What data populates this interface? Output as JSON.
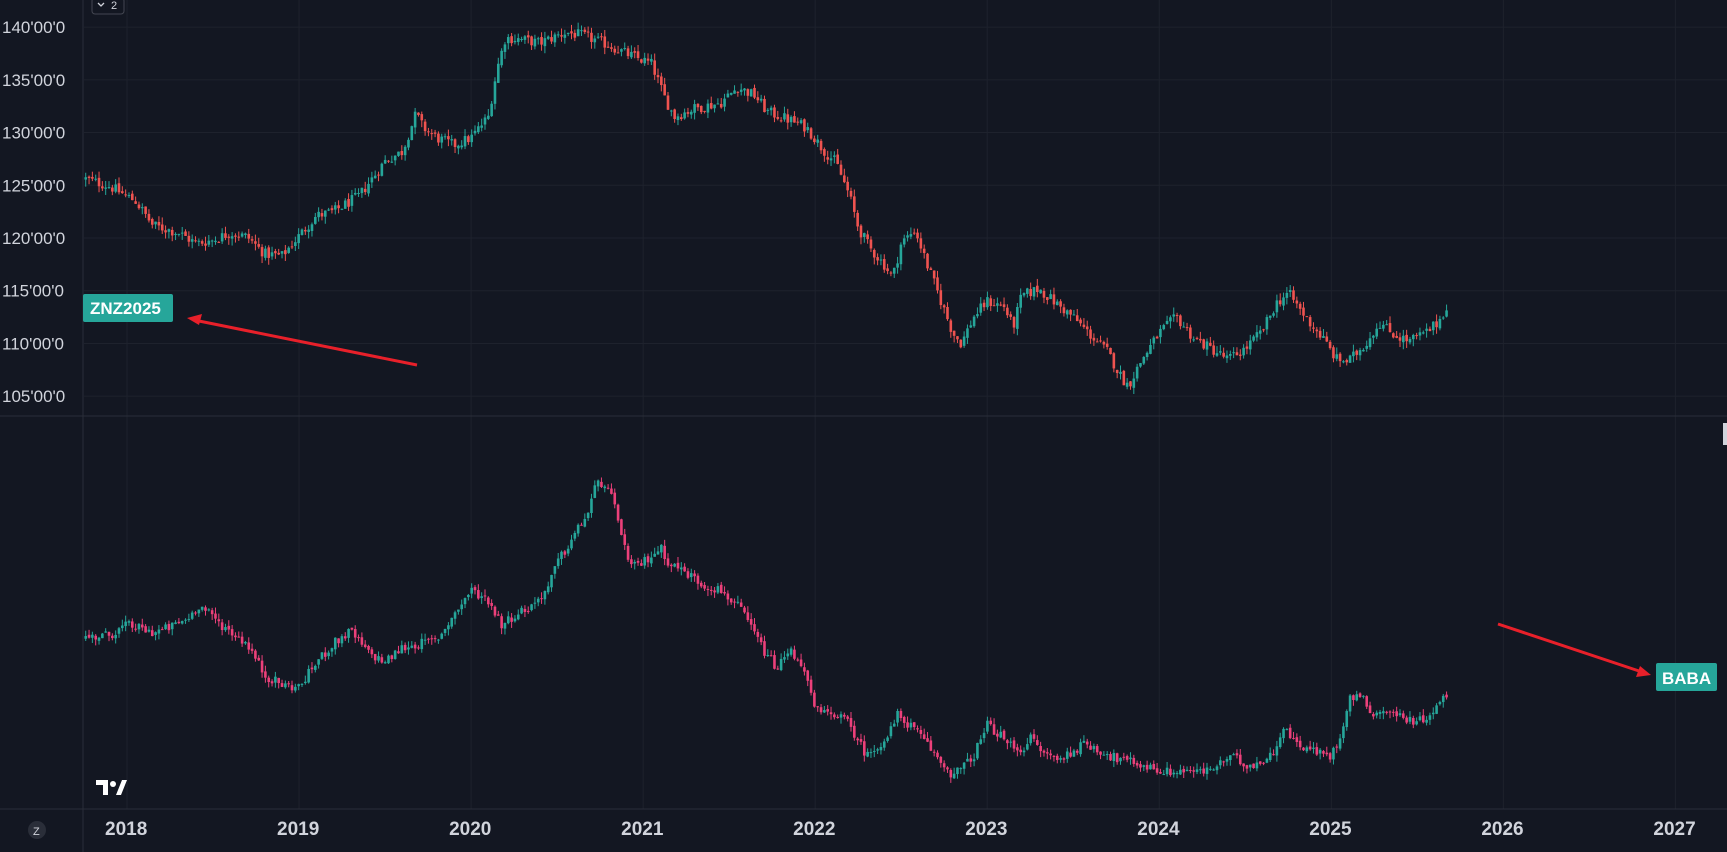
{
  "pane_control": {
    "label": "2",
    "icon": "chevron-down-icon"
  },
  "footer": {
    "icon": "z-circle-icon",
    "label": "Z"
  },
  "logo": {
    "icon": "tradingview-logo-icon"
  },
  "colors": {
    "background": "#131722",
    "grid": "#2a2e39",
    "text": "#d1d4dc",
    "up_top": "#26a69a",
    "down_top": "#ef5350",
    "up_bottom": "#26a69a",
    "down_bottom": "#ec407a",
    "tag": "#26a69a",
    "arrow": "#e8202a"
  },
  "chart_data": [
    {
      "type": "candlestick",
      "symbol_tag": "ZNZ2025",
      "y_tick_labels": [
        "140'00'0",
        "135'00'0",
        "130'00'0",
        "125'00'0",
        "120'00'0",
        "115'00'0",
        "110'00'0",
        "105'00'0"
      ],
      "y_ticks": [
        140,
        135,
        130,
        125,
        120,
        115,
        110,
        105
      ],
      "ylim": [
        103.5,
        142
      ],
      "x_tick_labels": [
        "2018",
        "2019",
        "2020",
        "2021",
        "2022",
        "2023",
        "2024",
        "2025",
        "2026",
        "2027"
      ],
      "xlim": [
        2017.75,
        2027.3
      ],
      "last_date": 2025.67,
      "closes": [
        {
          "t": 2017.76,
          "v": 125.6
        },
        {
          "t": 2017.9,
          "v": 124.9
        },
        {
          "t": 2018.05,
          "v": 123.5
        },
        {
          "t": 2018.15,
          "v": 121.2
        },
        {
          "t": 2018.3,
          "v": 120.5
        },
        {
          "t": 2018.4,
          "v": 119.5
        },
        {
          "t": 2018.5,
          "v": 119.8
        },
        {
          "t": 2018.6,
          "v": 120.5
        },
        {
          "t": 2018.7,
          "v": 120.1
        },
        {
          "t": 2018.8,
          "v": 118.5
        },
        {
          "t": 2018.9,
          "v": 118.3
        },
        {
          "t": 2019.0,
          "v": 120.2
        },
        {
          "t": 2019.1,
          "v": 122.1
        },
        {
          "t": 2019.2,
          "v": 122.5
        },
        {
          "t": 2019.35,
          "v": 124.0
        },
        {
          "t": 2019.5,
          "v": 127.3
        },
        {
          "t": 2019.6,
          "v": 128.2
        },
        {
          "t": 2019.68,
          "v": 131.8
        },
        {
          "t": 2019.72,
          "v": 130.5
        },
        {
          "t": 2019.8,
          "v": 129.5
        },
        {
          "t": 2019.9,
          "v": 128.8
        },
        {
          "t": 2020.0,
          "v": 129.5
        },
        {
          "t": 2020.1,
          "v": 131.5
        },
        {
          "t": 2020.15,
          "v": 136.0
        },
        {
          "t": 2020.2,
          "v": 139.0
        },
        {
          "t": 2020.3,
          "v": 138.8
        },
        {
          "t": 2020.4,
          "v": 138.5
        },
        {
          "t": 2020.55,
          "v": 139.5
        },
        {
          "t": 2020.65,
          "v": 139.2
        },
        {
          "t": 2020.8,
          "v": 138.3
        },
        {
          "t": 2020.9,
          "v": 137.5
        },
        {
          "t": 2021.05,
          "v": 136.5
        },
        {
          "t": 2021.12,
          "v": 133.5
        },
        {
          "t": 2021.18,
          "v": 131.5
        },
        {
          "t": 2021.3,
          "v": 132.3
        },
        {
          "t": 2021.45,
          "v": 132.8
        },
        {
          "t": 2021.55,
          "v": 134.3
        },
        {
          "t": 2021.65,
          "v": 133.5
        },
        {
          "t": 2021.72,
          "v": 132.0
        },
        {
          "t": 2021.85,
          "v": 131.2
        },
        {
          "t": 2021.95,
          "v": 130.5
        },
        {
          "t": 2022.05,
          "v": 128.3
        },
        {
          "t": 2022.12,
          "v": 127.2
        },
        {
          "t": 2022.15,
          "v": 126.0
        },
        {
          "t": 2022.2,
          "v": 124.0
        },
        {
          "t": 2022.25,
          "v": 121.0
        },
        {
          "t": 2022.32,
          "v": 119.0
        },
        {
          "t": 2022.4,
          "v": 117.5
        },
        {
          "t": 2022.45,
          "v": 116.2
        },
        {
          "t": 2022.5,
          "v": 119.5
        },
        {
          "t": 2022.58,
          "v": 120.8
        },
        {
          "t": 2022.65,
          "v": 117.5
        },
        {
          "t": 2022.72,
          "v": 114.5
        },
        {
          "t": 2022.8,
          "v": 111.0
        },
        {
          "t": 2022.85,
          "v": 110.0
        },
        {
          "t": 2022.92,
          "v": 112.5
        },
        {
          "t": 2023.0,
          "v": 114.0
        },
        {
          "t": 2023.1,
          "v": 113.5
        },
        {
          "t": 2023.15,
          "v": 111.5
        },
        {
          "t": 2023.2,
          "v": 114.5
        },
        {
          "t": 2023.3,
          "v": 115.2
        },
        {
          "t": 2023.4,
          "v": 113.8
        },
        {
          "t": 2023.5,
          "v": 112.5
        },
        {
          "t": 2023.6,
          "v": 110.8
        },
        {
          "t": 2023.7,
          "v": 109.2
        },
        {
          "t": 2023.78,
          "v": 106.8
        },
        {
          "t": 2023.82,
          "v": 106.0
        },
        {
          "t": 2023.9,
          "v": 108.5
        },
        {
          "t": 2024.0,
          "v": 111.0
        },
        {
          "t": 2024.1,
          "v": 112.5
        },
        {
          "t": 2024.2,
          "v": 110.5
        },
        {
          "t": 2024.3,
          "v": 109.5
        },
        {
          "t": 2024.4,
          "v": 108.5
        },
        {
          "t": 2024.5,
          "v": 109.5
        },
        {
          "t": 2024.6,
          "v": 111.2
        },
        {
          "t": 2024.68,
          "v": 113.8
        },
        {
          "t": 2024.75,
          "v": 114.8
        },
        {
          "t": 2024.85,
          "v": 112.5
        },
        {
          "t": 2024.95,
          "v": 110.5
        },
        {
          "t": 2025.03,
          "v": 108.5
        },
        {
          "t": 2025.1,
          "v": 108.3
        },
        {
          "t": 2025.2,
          "v": 110.0
        },
        {
          "t": 2025.28,
          "v": 112.0
        },
        {
          "t": 2025.35,
          "v": 111.0
        },
        {
          "t": 2025.45,
          "v": 110.2
        },
        {
          "t": 2025.55,
          "v": 111.0
        },
        {
          "t": 2025.62,
          "v": 112.0
        },
        {
          "t": 2025.67,
          "v": 113.5
        }
      ]
    },
    {
      "type": "candlestick",
      "symbol_tag": "BABA",
      "y_tick_labels": [],
      "ylim": [
        50,
        330
      ],
      "x_tick_labels": [
        "2018",
        "2019",
        "2020",
        "2021",
        "2022",
        "2023",
        "2024",
        "2025",
        "2026",
        "2027"
      ],
      "xlim": [
        2017.75,
        2027.3
      ],
      "last_date": 2025.67,
      "closes": [
        {
          "t": 2017.76,
          "v": 180
        },
        {
          "t": 2017.9,
          "v": 182
        },
        {
          "t": 2018.0,
          "v": 190
        },
        {
          "t": 2018.15,
          "v": 184
        },
        {
          "t": 2018.25,
          "v": 188
        },
        {
          "t": 2018.35,
          "v": 195
        },
        {
          "t": 2018.42,
          "v": 206
        },
        {
          "t": 2018.55,
          "v": 190
        },
        {
          "t": 2018.7,
          "v": 175
        },
        {
          "t": 2018.8,
          "v": 150
        },
        {
          "t": 2018.9,
          "v": 142
        },
        {
          "t": 2019.0,
          "v": 140
        },
        {
          "t": 2019.1,
          "v": 160
        },
        {
          "t": 2019.2,
          "v": 175
        },
        {
          "t": 2019.3,
          "v": 185
        },
        {
          "t": 2019.4,
          "v": 168
        },
        {
          "t": 2019.5,
          "v": 160
        },
        {
          "t": 2019.6,
          "v": 172
        },
        {
          "t": 2019.7,
          "v": 175
        },
        {
          "t": 2019.8,
          "v": 178
        },
        {
          "t": 2019.9,
          "v": 198
        },
        {
          "t": 2020.0,
          "v": 218
        },
        {
          "t": 2020.1,
          "v": 210
        },
        {
          "t": 2020.18,
          "v": 190
        },
        {
          "t": 2020.25,
          "v": 198
        },
        {
          "t": 2020.35,
          "v": 205
        },
        {
          "t": 2020.45,
          "v": 220
        },
        {
          "t": 2020.5,
          "v": 240
        },
        {
          "t": 2020.55,
          "v": 250
        },
        {
          "t": 2020.6,
          "v": 262
        },
        {
          "t": 2020.68,
          "v": 280
        },
        {
          "t": 2020.72,
          "v": 300
        },
        {
          "t": 2020.77,
          "v": 305
        },
        {
          "t": 2020.82,
          "v": 290
        },
        {
          "t": 2020.88,
          "v": 262
        },
        {
          "t": 2020.92,
          "v": 235
        },
        {
          "t": 2021.0,
          "v": 240
        },
        {
          "t": 2021.1,
          "v": 252
        },
        {
          "t": 2021.15,
          "v": 240
        },
        {
          "t": 2021.25,
          "v": 232
        },
        {
          "t": 2021.35,
          "v": 222
        },
        {
          "t": 2021.45,
          "v": 218
        },
        {
          "t": 2021.55,
          "v": 205
        },
        {
          "t": 2021.6,
          "v": 195
        },
        {
          "t": 2021.7,
          "v": 170
        },
        {
          "t": 2021.78,
          "v": 155
        },
        {
          "t": 2021.85,
          "v": 170
        },
        {
          "t": 2021.92,
          "v": 160
        },
        {
          "t": 2022.0,
          "v": 122
        },
        {
          "t": 2022.08,
          "v": 118
        },
        {
          "t": 2022.12,
          "v": 120
        },
        {
          "t": 2022.2,
          "v": 110
        },
        {
          "t": 2022.25,
          "v": 98
        },
        {
          "t": 2022.3,
          "v": 85
        },
        {
          "t": 2022.35,
          "v": 92
        },
        {
          "t": 2022.42,
          "v": 100
        },
        {
          "t": 2022.48,
          "v": 118
        },
        {
          "t": 2022.55,
          "v": 110
        },
        {
          "t": 2022.65,
          "v": 95
        },
        {
          "t": 2022.72,
          "v": 82
        },
        {
          "t": 2022.8,
          "v": 70
        },
        {
          "t": 2022.85,
          "v": 75
        },
        {
          "t": 2022.92,
          "v": 85
        },
        {
          "t": 2023.0,
          "v": 110
        },
        {
          "t": 2023.05,
          "v": 105
        },
        {
          "t": 2023.12,
          "v": 95
        },
        {
          "t": 2023.2,
          "v": 90
        },
        {
          "t": 2023.25,
          "v": 100
        },
        {
          "t": 2023.32,
          "v": 88
        },
        {
          "t": 2023.42,
          "v": 82
        },
        {
          "t": 2023.5,
          "v": 90
        },
        {
          "t": 2023.58,
          "v": 95
        },
        {
          "t": 2023.65,
          "v": 90
        },
        {
          "t": 2023.75,
          "v": 83
        },
        {
          "t": 2023.85,
          "v": 80
        },
        {
          "t": 2023.95,
          "v": 76
        },
        {
          "t": 2024.05,
          "v": 72
        },
        {
          "t": 2024.15,
          "v": 74
        },
        {
          "t": 2024.25,
          "v": 72
        },
        {
          "t": 2024.35,
          "v": 78
        },
        {
          "t": 2024.42,
          "v": 85
        },
        {
          "t": 2024.5,
          "v": 78
        },
        {
          "t": 2024.58,
          "v": 80
        },
        {
          "t": 2024.65,
          "v": 85
        },
        {
          "t": 2024.72,
          "v": 108
        },
        {
          "t": 2024.78,
          "v": 98
        },
        {
          "t": 2024.85,
          "v": 92
        },
        {
          "t": 2024.92,
          "v": 88
        },
        {
          "t": 2025.0,
          "v": 85
        },
        {
          "t": 2025.05,
          "v": 100
        },
        {
          "t": 2025.1,
          "v": 130
        },
        {
          "t": 2025.15,
          "v": 135
        },
        {
          "t": 2025.2,
          "v": 128
        },
        {
          "t": 2025.25,
          "v": 118
        },
        {
          "t": 2025.3,
          "v": 122
        },
        {
          "t": 2025.38,
          "v": 118
        },
        {
          "t": 2025.45,
          "v": 115
        },
        {
          "t": 2025.5,
          "v": 112
        },
        {
          "t": 2025.56,
          "v": 118
        },
        {
          "t": 2025.62,
          "v": 125
        },
        {
          "t": 2025.67,
          "v": 135
        }
      ]
    }
  ]
}
